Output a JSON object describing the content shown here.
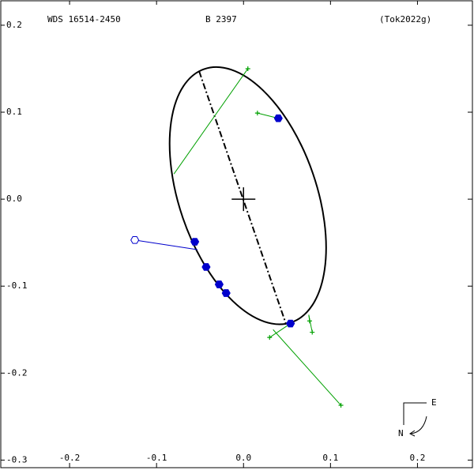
{
  "chart_data": {
    "type": "orbit",
    "header": {
      "left": "WDS 16514-2450",
      "center": "B  2397",
      "right": "(Tok2022g)"
    },
    "compass": {
      "east": "E",
      "north": "N"
    },
    "xlim": [
      -0.28,
      0.265
    ],
    "ylim": [
      -0.316,
      0.229
    ],
    "xticks": [
      -0.2,
      -0.1,
      {
        "value": 0,
        "label": "0.0"
      },
      0.1,
      0.2
    ],
    "yticks": [
      0.2,
      0.1,
      {
        "value": 0,
        "label": "0.0"
      },
      -0.1,
      -0.2,
      -0.3
    ],
    "orbit": {
      "color": "#000000",
      "center": [
        0.005,
        0.004
      ],
      "a": 0.154,
      "b": 0.079,
      "angle": -71
    },
    "apsides": {
      "x": [
        -0.051,
        0.049
      ],
      "y": [
        0.147,
        -0.144
      ]
    },
    "primary": {
      "x": 0,
      "y": 0
    },
    "micrometric": {
      "color": "#00a000",
      "x": [
        0.005,
        0.016,
        0.076,
        0.079,
        0.03,
        0.112
      ],
      "y": [
        0.15,
        0.099,
        -0.14,
        -0.153,
        -0.159,
        -0.237
      ],
      "orbit_x": [
        -0.08,
        0.04,
        0.075,
        0.075,
        0.054,
        0.034
      ],
      "orbit_y": [
        0.029,
        0.093,
        -0.133,
        -0.133,
        -0.143,
        -0.15
      ]
    },
    "speckle": {
      "color": "#0000cc",
      "x": [
        0.04,
        -0.056,
        -0.043,
        -0.028,
        -0.02,
        0.054
      ],
      "y": [
        0.093,
        -0.049,
        -0.078,
        -0.098,
        -0.108,
        -0.143
      ]
    },
    "visual": {
      "color": "#0000cc",
      "x": [
        -0.125
      ],
      "y": [
        -0.047
      ],
      "orbit_x": [
        -0.053
      ],
      "orbit_y": [
        -0.058
      ]
    }
  }
}
